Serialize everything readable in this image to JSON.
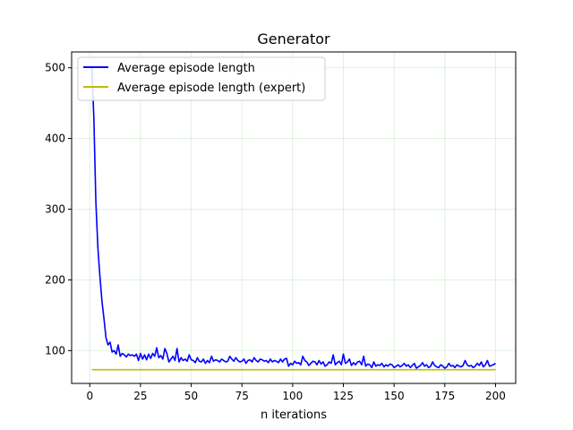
{
  "chart_data": {
    "type": "line",
    "title": "Generator",
    "xlabel": "n iterations",
    "ylabel": "",
    "xlim": [
      -8.95,
      209.95
    ],
    "ylim": [
      53.6,
      522.4
    ],
    "xticks": [
      0,
      25,
      50,
      75,
      100,
      125,
      150,
      175,
      200
    ],
    "yticks": [
      100,
      200,
      300,
      400,
      500
    ],
    "grid": true,
    "legend_position": "upper-left",
    "series": [
      {
        "name": "Average episode length",
        "color": "#0000ff",
        "x": [
          1,
          2,
          3,
          4,
          5,
          6,
          7,
          8,
          9,
          10,
          11,
          12,
          13,
          14,
          15,
          16,
          17,
          18,
          19,
          20,
          21,
          22,
          23,
          24,
          25,
          26,
          27,
          28,
          29,
          30,
          31,
          32,
          33,
          34,
          35,
          36,
          37,
          38,
          39,
          40,
          41,
          42,
          43,
          44,
          45,
          46,
          47,
          48,
          49,
          50,
          51,
          52,
          53,
          54,
          55,
          56,
          57,
          58,
          59,
          60,
          61,
          62,
          63,
          64,
          65,
          66,
          67,
          68,
          69,
          70,
          71,
          72,
          73,
          74,
          75,
          76,
          77,
          78,
          79,
          80,
          81,
          82,
          83,
          84,
          85,
          86,
          87,
          88,
          89,
          90,
          91,
          92,
          93,
          94,
          95,
          96,
          97,
          98,
          99,
          100,
          101,
          102,
          103,
          104,
          105,
          106,
          107,
          108,
          109,
          110,
          111,
          112,
          113,
          114,
          115,
          116,
          117,
          118,
          119,
          120,
          121,
          122,
          123,
          124,
          125,
          126,
          127,
          128,
          129,
          130,
          131,
          132,
          133,
          134,
          135,
          136,
          137,
          138,
          139,
          140,
          141,
          142,
          143,
          144,
          145,
          146,
          147,
          148,
          149,
          150,
          151,
          152,
          153,
          154,
          155,
          156,
          157,
          158,
          159,
          160,
          161,
          162,
          163,
          164,
          165,
          166,
          167,
          168,
          169,
          170,
          171,
          172,
          173,
          174,
          175,
          176,
          177,
          178,
          179,
          180,
          181,
          182,
          183,
          184,
          185,
          186,
          187,
          188,
          189,
          190,
          191,
          192,
          193,
          194,
          195,
          196,
          197,
          198,
          199,
          200
        ],
        "y": [
          500,
          430,
          310,
          245,
          205,
          170,
          145,
          118,
          108,
          112,
          98,
          100,
          95,
          108,
          92,
          96,
          94,
          91,
          95,
          93,
          94,
          92,
          95,
          86,
          96,
          88,
          94,
          87,
          95,
          89,
          96,
          92,
          104,
          90,
          93,
          88,
          103,
          96,
          84,
          88,
          92,
          86,
          103,
          84,
          90,
          86,
          88,
          85,
          94,
          87,
          86,
          83,
          90,
          85,
          84,
          88,
          82,
          86,
          83,
          92,
          85,
          87,
          86,
          84,
          88,
          86,
          84,
          85,
          92,
          88,
          85,
          90,
          86,
          84,
          85,
          88,
          82,
          86,
          87,
          84,
          90,
          86,
          84,
          88,
          87,
          85,
          86,
          83,
          88,
          84,
          86,
          85,
          83,
          88,
          84,
          88,
          89,
          78,
          82,
          80,
          85,
          82,
          83,
          80,
          92,
          86,
          84,
          79,
          82,
          85,
          84,
          80,
          86,
          81,
          84,
          78,
          80,
          84,
          82,
          94,
          80,
          83,
          85,
          80,
          95,
          82,
          84,
          88,
          79,
          83,
          80,
          84,
          85,
          80,
          92,
          78,
          81,
          80,
          76,
          84,
          78,
          80,
          79,
          82,
          77,
          80,
          78,
          81,
          80,
          76,
          78,
          80,
          77,
          79,
          82,
          78,
          80,
          76,
          79,
          82,
          75,
          77,
          79,
          83,
          78,
          80,
          76,
          78,
          84,
          79,
          77,
          76,
          80,
          78,
          75,
          77,
          82,
          78,
          79,
          76,
          80,
          78,
          77,
          79,
          86,
          80,
          78,
          79,
          76,
          78,
          82,
          79,
          84,
          77,
          80,
          86,
          78,
          79,
          80,
          82
        ]
      },
      {
        "name": "Average episode length (expert)",
        "color": "#bfbf00",
        "x": [
          1,
          200
        ],
        "y": [
          73,
          73
        ]
      }
    ]
  }
}
